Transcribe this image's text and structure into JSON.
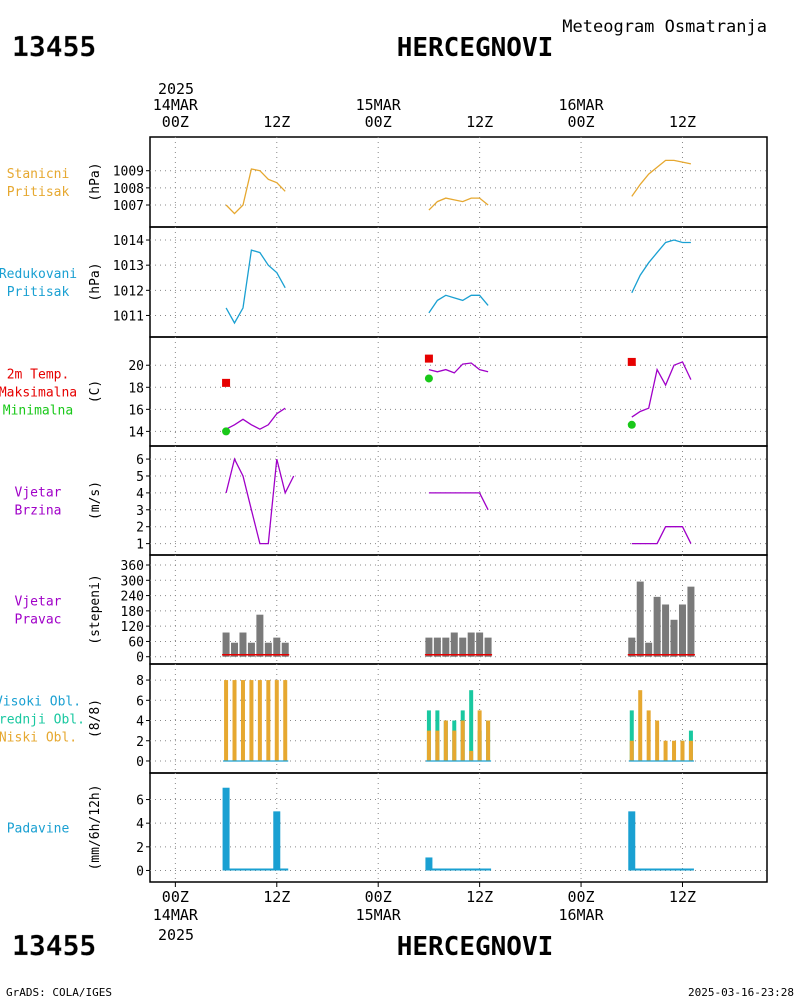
{
  "header": {
    "station_id": "13455",
    "station_name": "HERCEGNOVI",
    "product_title": "Meteogram Osmatranja",
    "year": "2025"
  },
  "footer": {
    "station_id": "13455",
    "station_name": "HERCEGNOVI",
    "credit": "GrADS: COLA/IGES",
    "timestamp": "2025-03-16-23:28"
  },
  "time_axis": {
    "top_date_labels": [
      "14MAR",
      "15MAR",
      "16MAR"
    ],
    "hour_labels": [
      "00Z",
      "12Z",
      "00Z",
      "12Z",
      "00Z",
      "12Z"
    ],
    "bottom_date_labels": [
      "14MAR",
      "15MAR",
      "16MAR"
    ],
    "hour_ticks": [
      0,
      12,
      24,
      36,
      48,
      60
    ],
    "range_hours": [
      -3,
      70
    ]
  },
  "colors": {
    "station_pressure": "#e6a830",
    "reduced_pressure": "#1aa0d2",
    "temperature": "#a000c8",
    "tmax": "#e60000",
    "tmin": "#19c819",
    "wind_speed": "#a000c8",
    "wind_dir_bar": "#7a7a7a",
    "wind_dir_base": "#e60000",
    "cloud_high": "#1aa0d2",
    "cloud_mid": "#19c8a0",
    "cloud_low": "#e6a830",
    "precip": "#1aa0d2"
  },
  "chart_data": [
    {
      "type": "line",
      "panel": "station_pressure",
      "label_lines": [
        "Stanicni",
        "Pritisak"
      ],
      "ylabel": "(hPa)",
      "ylim": [
        1006.3,
        1009.8
      ],
      "yticks": [
        1007,
        1008,
        1009
      ],
      "series": [
        {
          "points": [
            [
              6,
              1007.0
            ],
            [
              7,
              1006.5
            ],
            [
              8,
              1007.0
            ],
            [
              9,
              1009.1
            ],
            [
              10,
              1009.0
            ],
            [
              11,
              1008.5
            ],
            [
              12,
              1008.3
            ],
            [
              13,
              1007.8
            ]
          ]
        },
        {
          "points": [
            [
              30,
              1006.7
            ],
            [
              31,
              1007.2
            ],
            [
              32,
              1007.4
            ],
            [
              33,
              1007.3
            ],
            [
              34,
              1007.2
            ],
            [
              35,
              1007.4
            ],
            [
              36,
              1007.4
            ],
            [
              37,
              1007.0
            ]
          ]
        },
        {
          "points": [
            [
              54,
              1007.5
            ],
            [
              55,
              1008.2
            ],
            [
              56,
              1008.8
            ],
            [
              57,
              1009.2
            ],
            [
              58,
              1009.6
            ],
            [
              59,
              1009.6
            ],
            [
              60,
              1009.5
            ],
            [
              61,
              1009.4
            ]
          ]
        }
      ]
    },
    {
      "type": "line",
      "panel": "reduced_pressure",
      "label_lines": [
        "Redukovani",
        "Pritisak"
      ],
      "ylabel": "(hPa)",
      "ylim": [
        1010.7,
        1014.2
      ],
      "yticks": [
        1011,
        1012,
        1013,
        1014
      ],
      "series": [
        {
          "points": [
            [
              6,
              1011.3
            ],
            [
              7,
              1010.7
            ],
            [
              8,
              1011.3
            ],
            [
              9,
              1013.6
            ],
            [
              10,
              1013.5
            ],
            [
              11,
              1013.0
            ],
            [
              12,
              1012.7
            ],
            [
              13,
              1012.1
            ]
          ]
        },
        {
          "points": [
            [
              30,
              1011.1
            ],
            [
              31,
              1011.6
            ],
            [
              32,
              1011.8
            ],
            [
              33,
              1011.7
            ],
            [
              34,
              1011.6
            ],
            [
              35,
              1011.8
            ],
            [
              36,
              1011.8
            ],
            [
              37,
              1011.4
            ]
          ]
        },
        {
          "points": [
            [
              54,
              1011.9
            ],
            [
              55,
              1012.6
            ],
            [
              56,
              1013.1
            ],
            [
              57,
              1013.5
            ],
            [
              58,
              1013.9
            ],
            [
              59,
              1014.0
            ],
            [
              60,
              1013.9
            ],
            [
              61,
              1013.9
            ]
          ]
        }
      ]
    },
    {
      "type": "line",
      "panel": "temperature",
      "label_lines": [
        "2m Temp.",
        "Maksimalna",
        "Minimalna"
      ],
      "ylabel": "(C)",
      "ylim": [
        13.4,
        21.2
      ],
      "yticks": [
        14,
        16,
        18,
        20
      ],
      "series": [
        {
          "points": [
            [
              6,
              14.2
            ],
            [
              7,
              14.6
            ],
            [
              8,
              15.1
            ],
            [
              9,
              14.6
            ],
            [
              10,
              14.2
            ],
            [
              11,
              14.6
            ],
            [
              12,
              15.6
            ],
            [
              13,
              16.1
            ]
          ]
        },
        {
          "points": [
            [
              30,
              19.6
            ],
            [
              31,
              19.4
            ],
            [
              32,
              19.6
            ],
            [
              33,
              19.3
            ],
            [
              34,
              20.1
            ],
            [
              35,
              20.2
            ],
            [
              36,
              19.6
            ],
            [
              37,
              19.4
            ]
          ]
        },
        {
          "points": [
            [
              54,
              15.3
            ],
            [
              55,
              15.8
            ],
            [
              56,
              16.1
            ],
            [
              57,
              19.6
            ],
            [
              58,
              18.2
            ],
            [
              59,
              20.0
            ],
            [
              60,
              20.3
            ],
            [
              61,
              18.7
            ]
          ]
        }
      ],
      "tmax": [
        [
          6,
          18.4
        ],
        [
          30,
          20.6
        ],
        [
          54,
          20.3
        ]
      ],
      "tmin": [
        [
          6,
          14.0
        ],
        [
          30,
          18.8
        ],
        [
          54,
          14.6
        ]
      ]
    },
    {
      "type": "line",
      "panel": "wind_speed",
      "label_lines": [
        "Vjetar",
        "Brzina"
      ],
      "ylabel": "(m/s)",
      "ylim": [
        0.8,
        6.3
      ],
      "yticks": [
        1,
        2,
        3,
        4,
        5,
        6
      ],
      "series": [
        {
          "points": [
            [
              6,
              4
            ],
            [
              7,
              6
            ],
            [
              8,
              5
            ],
            [
              9,
              3
            ],
            [
              10,
              1
            ],
            [
              11,
              1
            ],
            [
              12,
              6
            ],
            [
              13,
              4
            ],
            [
              14,
              5
            ]
          ]
        },
        {
          "points": [
            [
              30,
              4
            ],
            [
              31,
              4
            ],
            [
              32,
              4
            ],
            [
              33,
              4
            ],
            [
              34,
              4
            ],
            [
              35,
              4
            ],
            [
              36,
              4
            ],
            [
              37,
              3
            ]
          ]
        },
        {
          "points": [
            [
              54,
              1
            ],
            [
              55,
              1
            ],
            [
              56,
              1
            ],
            [
              57,
              1
            ],
            [
              58,
              2
            ],
            [
              59,
              2
            ],
            [
              60,
              2
            ],
            [
              61,
              1
            ]
          ]
        }
      ]
    },
    {
      "type": "bar",
      "panel": "wind_direction",
      "label_lines": [
        "Vjetar",
        "Pravac"
      ],
      "ylabel": "(stepeni)",
      "ylim": [
        -5,
        360
      ],
      "yticks": [
        0,
        60,
        120,
        180,
        240,
        300,
        360
      ],
      "x": [
        6,
        7,
        8,
        9,
        10,
        11,
        12,
        13,
        30,
        31,
        32,
        33,
        34,
        35,
        36,
        37,
        54,
        55,
        56,
        57,
        58,
        59,
        60,
        61
      ],
      "values": [
        95,
        55,
        95,
        55,
        165,
        55,
        75,
        55,
        75,
        75,
        75,
        95,
        75,
        95,
        95,
        75,
        75,
        295,
        55,
        235,
        205,
        145,
        205,
        275
      ]
    },
    {
      "type": "bar",
      "panel": "clouds",
      "label_lines": [
        "Visoki Obl.",
        "Srednji Obl.",
        "Niski Obl."
      ],
      "ylabel": "(8/8)",
      "ylim": [
        -0.2,
        8.6
      ],
      "yticks": [
        0,
        2,
        4,
        6,
        8
      ],
      "x": [
        6,
        7,
        8,
        9,
        10,
        11,
        12,
        13,
        30,
        31,
        32,
        33,
        34,
        35,
        36,
        37,
        54,
        55,
        56,
        57,
        58,
        59,
        60,
        61
      ],
      "series": [
        {
          "name": "Visoki Obl.",
          "values": [
            0,
            0,
            0,
            0,
            0,
            0,
            0,
            0,
            0,
            0,
            0,
            0,
            0,
            0,
            0,
            0,
            0,
            0,
            0,
            0,
            0,
            0,
            0,
            0
          ]
        },
        {
          "name": "Srednji Obl.",
          "values": [
            0,
            0,
            0,
            0,
            0,
            0,
            0,
            0,
            5,
            5,
            4,
            4,
            5,
            7,
            3,
            4,
            5,
            0,
            0,
            0,
            0,
            0,
            2,
            3
          ]
        },
        {
          "name": "Niski Obl.",
          "values": [
            8,
            8,
            8,
            8,
            8,
            8,
            8,
            8,
            3,
            3,
            4,
            3,
            4,
            1,
            5,
            4,
            2,
            7,
            5,
            4,
            2,
            2,
            2,
            2
          ]
        }
      ]
    },
    {
      "type": "bar",
      "panel": "precipitation",
      "label_lines": [
        "Padavine"
      ],
      "ylabel": "(mm/6h/12h)",
      "ylim": [
        -0.3,
        7.4
      ],
      "yticks": [
        0,
        2,
        4,
        6
      ],
      "x": [
        6,
        7,
        8,
        9,
        10,
        11,
        12,
        13,
        30,
        31,
        32,
        33,
        34,
        35,
        36,
        37,
        54,
        55,
        56,
        57,
        58,
        59,
        60,
        61
      ],
      "values": [
        7,
        0,
        0,
        0,
        0,
        0,
        5,
        0,
        1.1,
        0,
        0,
        0,
        0,
        0,
        0,
        0,
        5,
        0,
        0,
        0,
        0,
        0,
        0,
        0
      ]
    }
  ]
}
